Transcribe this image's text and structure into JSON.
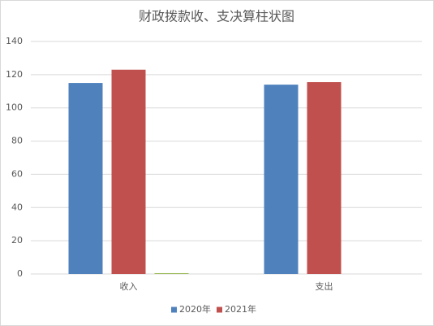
{
  "chart_data": {
    "type": "bar",
    "title": "财政拨款收、支决算柱状图",
    "categories": [
      "收入",
      "支出"
    ],
    "series": [
      {
        "name": "2020年",
        "color": "#4f81bd",
        "values": [
          115,
          114
        ]
      },
      {
        "name": "2021年",
        "color": "#c0504d",
        "values": [
          123,
          115.5
        ]
      },
      {
        "color": "#9bbb59",
        "values": [
          0.5,
          null
        ]
      }
    ],
    "ylim": [
      0,
      140
    ],
    "yticks": [
      0,
      20,
      40,
      60,
      80,
      100,
      120,
      140
    ],
    "grid": true,
    "legend": "bottom"
  }
}
